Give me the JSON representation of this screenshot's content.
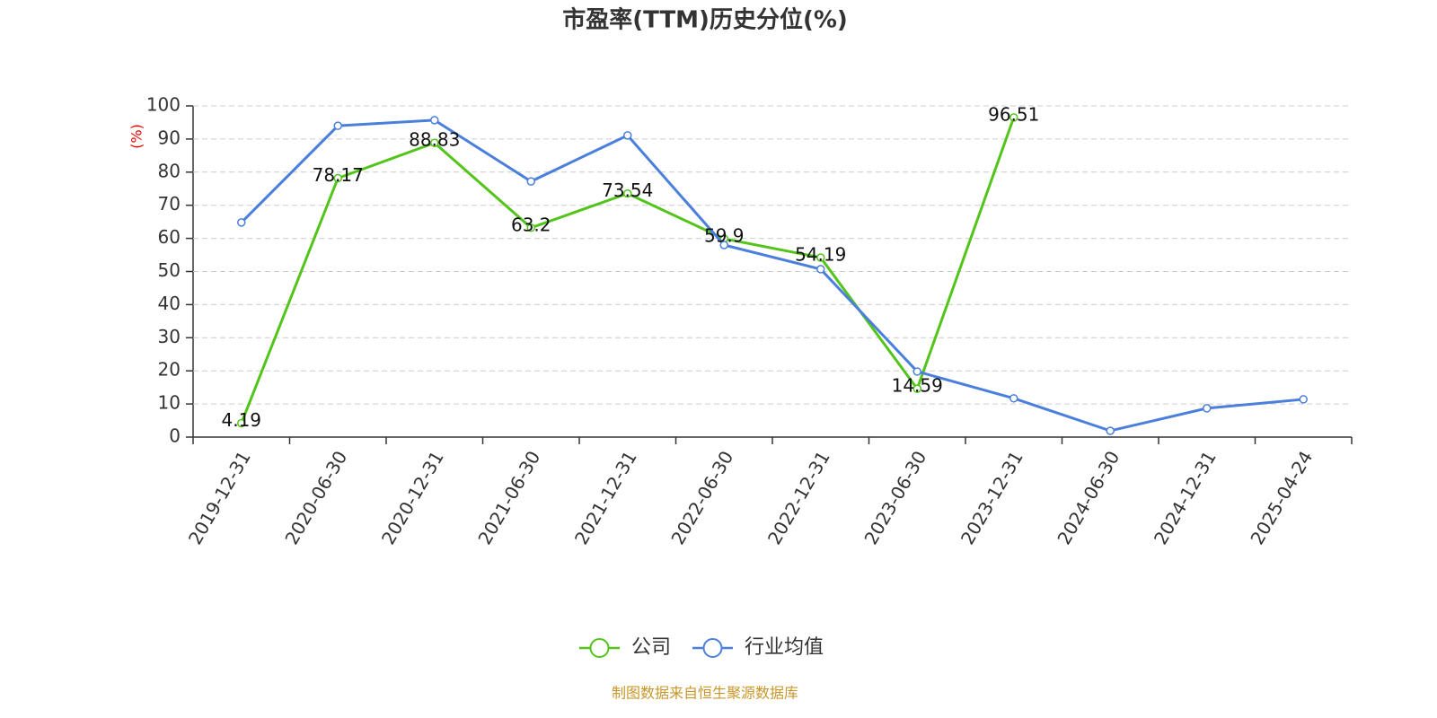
{
  "chart_data": {
    "type": "line",
    "title": "市盈率(TTM)历史分位(%)",
    "y_label": "(%)",
    "source": "制图数据来自恒生聚源数据库",
    "categories": [
      "2019-12-31",
      "2020-06-30",
      "2020-12-31",
      "2021-06-30",
      "2021-12-31",
      "2022-06-30",
      "2022-12-31",
      "2023-06-30",
      "2023-12-31",
      "2024-06-30",
      "2024-12-31",
      "2025-04-24"
    ],
    "series": [
      {
        "name": "公司",
        "color": "#52c41a",
        "values": [
          4.19,
          78.17,
          88.83,
          63.2,
          73.54,
          59.9,
          54.19,
          14.59,
          96.51,
          null,
          null,
          null
        ],
        "labels": true
      },
      {
        "name": "行业均值",
        "color": "#4a7fdb",
        "values": [
          64.8,
          94.0,
          95.7,
          77.2,
          91.1,
          58.0,
          50.7,
          19.8,
          11.7,
          1.9,
          8.7,
          11.4
        ],
        "labels": false
      }
    ],
    "ylim": [
      0,
      100
    ],
    "yticks": [
      0,
      10,
      20,
      30,
      40,
      50,
      60,
      70,
      80,
      90,
      100
    ],
    "grid": true
  }
}
